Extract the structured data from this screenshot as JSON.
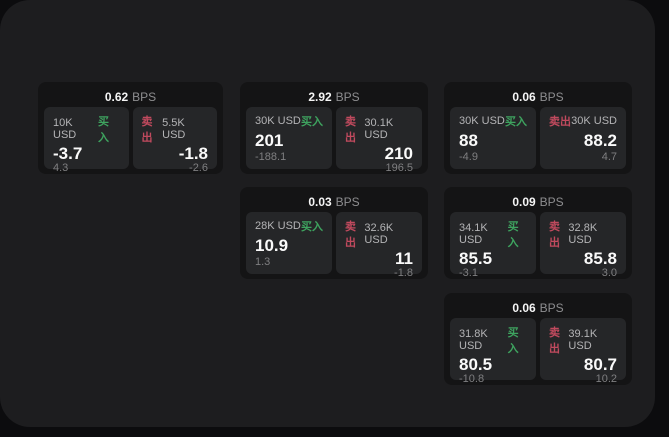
{
  "labels": {
    "unit": "BPS",
    "buy": "买入",
    "sell": "卖出"
  },
  "colors": {
    "buy_green": "#3ea35f",
    "sell_red": "#c14a5e",
    "surface": "#1d1d1f",
    "card": "#141415",
    "panel": "#252628"
  },
  "cards": [
    {
      "bps": "0.62",
      "buy": {
        "size": "10K USD",
        "value": "-3.7",
        "delta": "4.3"
      },
      "sell": {
        "size": "5.5K USD",
        "value": "-1.8",
        "delta": "-2.6"
      }
    },
    {
      "bps": "2.92",
      "buy": {
        "size": "30K USD",
        "value": "201",
        "delta": "-188.1"
      },
      "sell": {
        "size": "30.1K USD",
        "value": "210",
        "delta": "196.5"
      }
    },
    {
      "bps": "0.06",
      "buy": {
        "size": "30K USD",
        "value": "88",
        "delta": "-4.9"
      },
      "sell": {
        "size": "30K USD",
        "value": "88.2",
        "delta": "4.7"
      }
    },
    {
      "bps": "0.03",
      "buy": {
        "size": "28K USD",
        "value": "10.9",
        "delta": "1.3"
      },
      "sell": {
        "size": "32.6K USD",
        "value": "11",
        "delta": "-1.8"
      }
    },
    {
      "bps": "0.09",
      "buy": {
        "size": "34.1K USD",
        "value": "85.5",
        "delta": "-3.1"
      },
      "sell": {
        "size": "32.8K USD",
        "value": "85.8",
        "delta": "3.0"
      }
    },
    {
      "bps": "0.06",
      "buy": {
        "size": "31.8K USD",
        "value": "80.5",
        "delta": "-10.8"
      },
      "sell": {
        "size": "39.1K USD",
        "value": "80.7",
        "delta": "10.2"
      }
    }
  ]
}
